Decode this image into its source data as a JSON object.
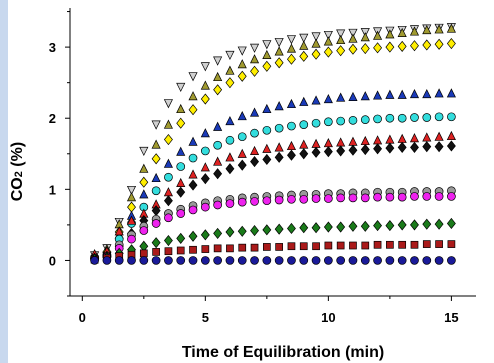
{
  "chart_data": {
    "type": "scatter",
    "xlabel": "Time of Equilibration (min)",
    "ylabel": {
      "main": "CO",
      "sub": "2",
      "tail": " (%)"
    },
    "xlim": [
      -0.5,
      16
    ],
    "ylim": [
      -0.5,
      3.55
    ],
    "xticks": [
      0,
      5,
      10,
      15
    ],
    "yticks": [
      0,
      1,
      2,
      3
    ],
    "x": [
      0.5,
      1.0,
      1.5,
      2.0,
      2.5,
      3.0,
      3.5,
      4.0,
      4.5,
      5.0,
      5.5,
      6.0,
      6.5,
      7.0,
      7.5,
      8.0,
      8.5,
      9.0,
      9.5,
      10.0,
      10.5,
      11.0,
      11.5,
      12.0,
      12.5,
      13.0,
      13.5,
      14.0,
      14.5,
      15.0
    ],
    "series": [
      {
        "marker": "triangle-down",
        "color": "#d0d0d0",
        "values": [
          0.08,
          0.18,
          0.55,
          1.0,
          1.55,
          1.92,
          2.22,
          2.45,
          2.6,
          2.74,
          2.82,
          2.9,
          2.96,
          3.0,
          3.05,
          3.08,
          3.12,
          3.14,
          3.16,
          3.18,
          3.2,
          3.21,
          3.22,
          3.23,
          3.24,
          3.25,
          3.26,
          3.27,
          3.28,
          3.29
        ]
      },
      {
        "marker": "triangle-up",
        "color": "#a09a30",
        "values": [
          0.07,
          0.15,
          0.5,
          0.88,
          1.28,
          1.62,
          1.9,
          2.12,
          2.3,
          2.45,
          2.57,
          2.66,
          2.75,
          2.82,
          2.88,
          2.93,
          2.97,
          3.01,
          3.04,
          3.07,
          3.09,
          3.11,
          3.13,
          3.15,
          3.17,
          3.19,
          3.21,
          3.23,
          3.24,
          3.25
        ]
      },
      {
        "marker": "diamond",
        "color": "#ffee00",
        "values": [
          0.06,
          0.12,
          0.4,
          0.75,
          1.1,
          1.43,
          1.7,
          1.93,
          2.12,
          2.27,
          2.4,
          2.5,
          2.59,
          2.66,
          2.73,
          2.78,
          2.83,
          2.87,
          2.9,
          2.93,
          2.95,
          2.97,
          2.98,
          2.99,
          3.0,
          3.01,
          3.02,
          3.03,
          3.04,
          3.05
        ]
      },
      {
        "marker": "triangle-up",
        "color": "#1a3ab8",
        "values": [
          0.05,
          0.1,
          0.35,
          0.62,
          0.92,
          1.15,
          1.35,
          1.52,
          1.66,
          1.78,
          1.87,
          1.95,
          2.02,
          2.07,
          2.12,
          2.16,
          2.19,
          2.22,
          2.24,
          2.26,
          2.28,
          2.29,
          2.3,
          2.31,
          2.32,
          2.32,
          2.33,
          2.33,
          2.34,
          2.34
        ]
      },
      {
        "marker": "circle",
        "color": "#33dddd",
        "values": [
          0.04,
          0.08,
          0.3,
          0.52,
          0.75,
          0.98,
          1.17,
          1.32,
          1.44,
          1.54,
          1.62,
          1.69,
          1.74,
          1.79,
          1.83,
          1.86,
          1.89,
          1.91,
          1.93,
          1.95,
          1.96,
          1.97,
          1.98,
          1.99,
          2.0,
          2.0,
          2.01,
          2.01,
          2.02,
          2.02
        ]
      },
      {
        "marker": "triangle-up",
        "color": "#dd2222",
        "values": [
          0.08,
          0.12,
          0.4,
          0.55,
          0.65,
          0.78,
          0.95,
          1.08,
          1.2,
          1.3,
          1.38,
          1.44,
          1.49,
          1.53,
          1.56,
          1.58,
          1.6,
          1.62,
          1.63,
          1.64,
          1.65,
          1.66,
          1.67,
          1.68,
          1.69,
          1.7,
          1.71,
          1.72,
          1.73,
          1.74
        ]
      },
      {
        "marker": "diamond",
        "color": "#111111",
        "values": [
          0.03,
          0.06,
          0.2,
          0.38,
          0.56,
          0.7,
          0.84,
          0.96,
          1.06,
          1.15,
          1.22,
          1.29,
          1.34,
          1.39,
          1.42,
          1.45,
          1.48,
          1.5,
          1.52,
          1.53,
          1.54,
          1.55,
          1.56,
          1.57,
          1.58,
          1.59,
          1.59,
          1.6,
          1.6,
          1.61
        ]
      },
      {
        "marker": "circle",
        "color": "#999999",
        "values": [
          0.03,
          0.06,
          0.22,
          0.36,
          0.48,
          0.58,
          0.66,
          0.72,
          0.77,
          0.81,
          0.84,
          0.86,
          0.88,
          0.89,
          0.9,
          0.91,
          0.92,
          0.93,
          0.93,
          0.94,
          0.94,
          0.95,
          0.95,
          0.96,
          0.96,
          0.96,
          0.97,
          0.97,
          0.97,
          0.98
        ]
      },
      {
        "marker": "circle",
        "color": "#ee22ee",
        "values": [
          0.02,
          0.05,
          0.17,
          0.3,
          0.42,
          0.52,
          0.6,
          0.66,
          0.71,
          0.75,
          0.78,
          0.8,
          0.82,
          0.83,
          0.84,
          0.85,
          0.86,
          0.86,
          0.87,
          0.87,
          0.88,
          0.88,
          0.88,
          0.89,
          0.89,
          0.89,
          0.9,
          0.9,
          0.9,
          0.9
        ]
      },
      {
        "marker": "diamond",
        "color": "#1a7a1a",
        "values": [
          0.02,
          0.04,
          0.1,
          0.15,
          0.2,
          0.25,
          0.28,
          0.31,
          0.34,
          0.36,
          0.38,
          0.4,
          0.41,
          0.42,
          0.43,
          0.44,
          0.45,
          0.46,
          0.46,
          0.47,
          0.47,
          0.48,
          0.48,
          0.49,
          0.49,
          0.5,
          0.5,
          0.51,
          0.51,
          0.52
        ]
      },
      {
        "marker": "square",
        "color": "#aa1a1a",
        "values": [
          0.01,
          0.03,
          0.06,
          0.08,
          0.1,
          0.12,
          0.13,
          0.14,
          0.15,
          0.16,
          0.17,
          0.17,
          0.18,
          0.18,
          0.19,
          0.19,
          0.2,
          0.2,
          0.2,
          0.21,
          0.21,
          0.21,
          0.21,
          0.22,
          0.22,
          0.22,
          0.22,
          0.23,
          0.23,
          0.23
        ]
      },
      {
        "marker": "circle",
        "color": "#1a1a99",
        "values": [
          0.0,
          0.0,
          0.0,
          0.0,
          0.0,
          0.0,
          0.0,
          0.0,
          0.0,
          0.0,
          0.0,
          0.0,
          0.0,
          0.0,
          0.0,
          0.0,
          0.0,
          0.0,
          0.0,
          0.0,
          0.0,
          0.0,
          0.0,
          0.0,
          0.0,
          0.0,
          0.0,
          0.0,
          0.0,
          0.0
        ]
      }
    ]
  },
  "colors": {
    "side_strip": "#c8d8ee",
    "marker_outline": "#000000",
    "axis": "#000000"
  }
}
